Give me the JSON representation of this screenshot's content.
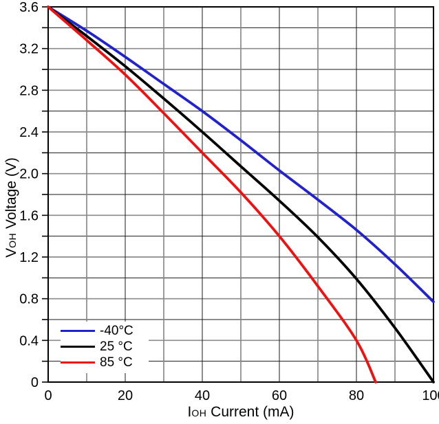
{
  "chart_data": {
    "type": "line",
    "title": "",
    "background_color": "#ffffff",
    "x_axis": {
      "label_symbol": "I",
      "label_subscript": "OH",
      "label_rest": " Current (mA)",
      "min": 0,
      "max": 100,
      "grid_step": 10,
      "tick_label_step": 20,
      "tick_labels": [
        "0",
        "20",
        "40",
        "60",
        "80",
        "100"
      ]
    },
    "y_axis": {
      "label_symbol": "V",
      "label_subscript": "OH",
      "label_rest": " Voltage (V)",
      "min": 0,
      "max": 3.6,
      "grid_step": 0.2,
      "tick_label_step": 0.4,
      "tick_labels": [
        "0",
        "0.4",
        "0.8",
        "1.2",
        "1.6",
        "2.0",
        "2.4",
        "2.8",
        "3.2",
        "3.6"
      ]
    },
    "grid": {
      "on": true,
      "major_line_color": "#1a1a1a",
      "minor_line_color": "#8a8a8a",
      "frame_color": "#000000"
    },
    "legend": {
      "position": "inside-bottom-left",
      "background": "#ffffff"
    },
    "series": [
      {
        "label": "-40°C",
        "color": "#2222cc",
        "x": [
          0,
          10,
          20,
          30,
          40,
          50,
          60,
          70,
          80,
          90,
          100
        ],
        "v": [
          3.6,
          3.37,
          3.12,
          2.86,
          2.6,
          2.32,
          2.03,
          1.75,
          1.46,
          1.13,
          0.77
        ]
      },
      {
        "label": "25 °C",
        "color": "#000000",
        "x": [
          0,
          10,
          20,
          30,
          40,
          50,
          60,
          70,
          80,
          90,
          100
        ],
        "v": [
          3.6,
          3.32,
          3.03,
          2.72,
          2.4,
          2.07,
          1.74,
          1.39,
          0.99,
          0.52,
          0
        ]
      },
      {
        "label": "85 °C",
        "color": "#ee1111",
        "x": [
          0,
          10,
          20,
          30,
          40,
          50,
          60,
          70,
          80,
          85
        ],
        "v": [
          3.6,
          3.28,
          2.95,
          2.58,
          2.2,
          1.82,
          1.4,
          0.92,
          0.4,
          0
        ]
      }
    ]
  }
}
